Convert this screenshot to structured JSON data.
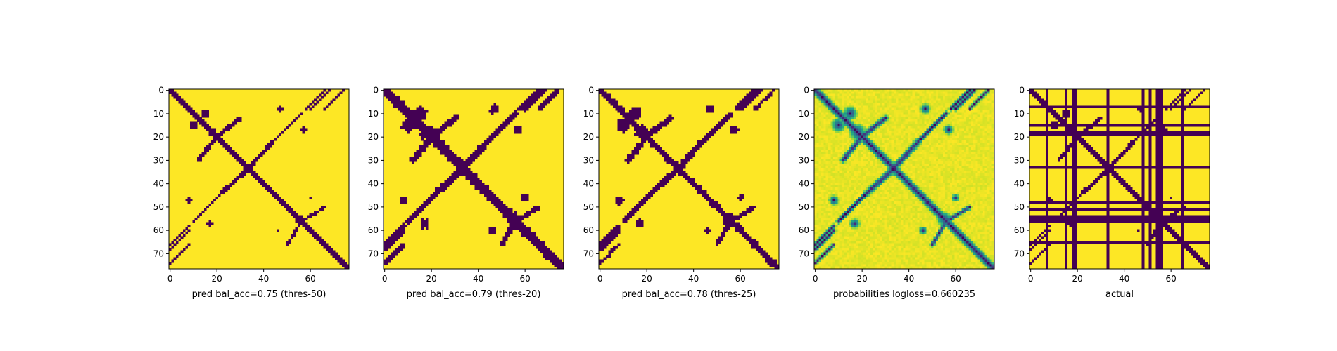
{
  "chart_data": [
    {
      "type": "heatmap",
      "title": "",
      "xlabel": "pred bal_acc=0.75 (thres-50)",
      "ylabel": "",
      "matrix_size": 77,
      "xlim": [
        0,
        76
      ],
      "ylim": [
        76,
        0
      ],
      "x_ticks": [
        0,
        20,
        40,
        60
      ],
      "y_ticks": [
        0,
        10,
        20,
        30,
        40,
        50,
        60,
        70
      ],
      "colormap": "viridis",
      "values_range": [
        0,
        1
      ],
      "values_summary": "binary contact map; 0 (dark purple) along main diagonal band and secondary diagonal features, 1 (yellow) elsewhere",
      "grid": false
    },
    {
      "type": "heatmap",
      "title": "",
      "xlabel": "pred bal_acc=0.79 (thres-20)",
      "ylabel": "",
      "matrix_size": 77,
      "xlim": [
        0,
        76
      ],
      "ylim": [
        76,
        0
      ],
      "x_ticks": [
        0,
        20,
        40,
        60
      ],
      "y_ticks": [
        0,
        10,
        20,
        30,
        40,
        50,
        60,
        70
      ],
      "colormap": "viridis",
      "values_range": [
        0,
        1
      ],
      "values_summary": "binary contact map; more 0-valued regions than threshold 50",
      "grid": false
    },
    {
      "type": "heatmap",
      "title": "",
      "xlabel": "pred bal_acc=0.78 (thres-25)",
      "ylabel": "",
      "matrix_size": 77,
      "xlim": [
        0,
        76
      ],
      "ylim": [
        76,
        0
      ],
      "x_ticks": [
        0,
        20,
        40,
        60
      ],
      "y_ticks": [
        0,
        10,
        20,
        30,
        40,
        50,
        60,
        70
      ],
      "colormap": "viridis",
      "values_range": [
        0,
        1
      ],
      "values_summary": "binary contact map; between threshold 20 and 50",
      "grid": false
    },
    {
      "type": "heatmap",
      "title": "",
      "xlabel": "probabilities logloss=0.660235",
      "ylabel": "",
      "matrix_size": 77,
      "xlim": [
        0,
        76
      ],
      "ylim": [
        76,
        0
      ],
      "x_ticks": [
        0,
        20,
        40,
        60
      ],
      "y_ticks": [
        0,
        10,
        20,
        30,
        40,
        50,
        60,
        70
      ],
      "colormap": "viridis",
      "values_range": [
        0,
        1
      ],
      "values_summary": "continuous probability map; low values on diagonal band and contact regions, mostly high elsewhere",
      "grid": false
    },
    {
      "type": "heatmap",
      "title": "",
      "xlabel": "actual",
      "ylabel": "",
      "matrix_size": 77,
      "xlim": [
        0,
        76
      ],
      "ylim": [
        76,
        0
      ],
      "x_ticks": [
        0,
        20,
        40,
        60
      ],
      "y_ticks": [
        0,
        10,
        20,
        30,
        40,
        50,
        60,
        70
      ],
      "colormap": "viridis",
      "values_range": [
        0,
        1
      ],
      "values_summary": "ground-truth binary contact map; diagonal band plus full-row and full-column 0 lines at masked residues",
      "grid": false
    }
  ]
}
